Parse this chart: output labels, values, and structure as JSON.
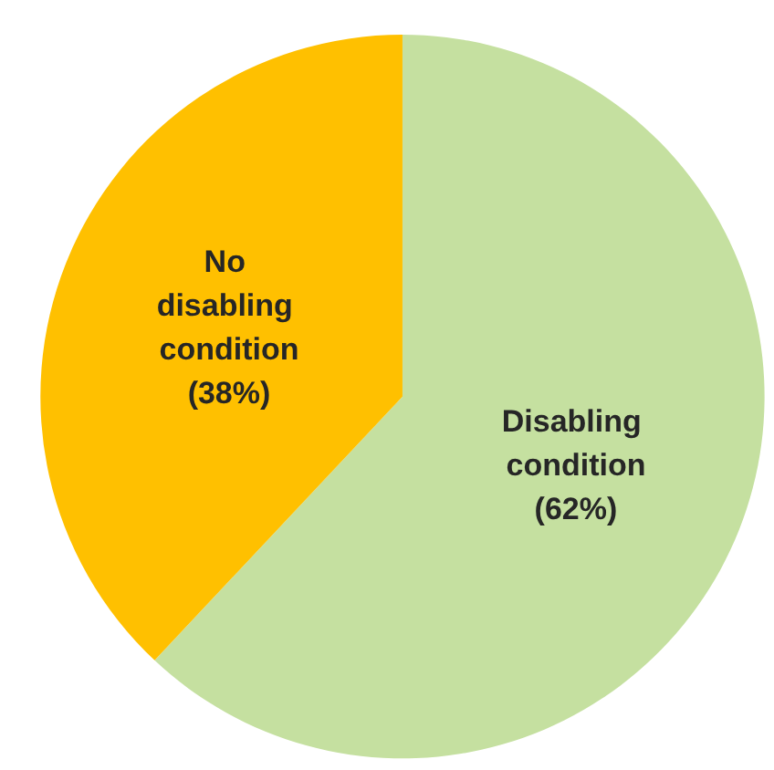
{
  "chart_data": {
    "type": "pie",
    "categories": [
      "Disabling condition",
      "No disabling condition"
    ],
    "values": [
      62,
      38
    ],
    "colors": [
      "#c5e0a0",
      "#ffc000"
    ],
    "value_labels": [
      "(62%)",
      "(38%)"
    ]
  }
}
